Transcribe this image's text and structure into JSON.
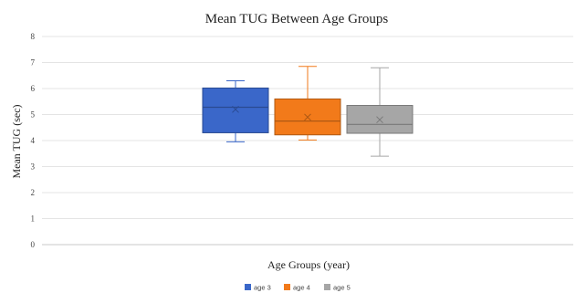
{
  "chart_data": {
    "type": "box",
    "title": "Mean TUG Between Age Groups",
    "xlabel": "Age Groups (year)",
    "ylabel": "Mean TUG (sec)",
    "ylim": [
      0,
      8
    ],
    "yticks": [
      0,
      1,
      2,
      3,
      4,
      5,
      6,
      7,
      8
    ],
    "grid": true,
    "legend_position": "bottom",
    "series": [
      {
        "name": "age  3",
        "color": "#3a67c9",
        "min": 3.95,
        "q1": 4.3,
        "median": 5.28,
        "q3": 6.02,
        "max": 6.3,
        "mean": 5.2
      },
      {
        "name": "age 4",
        "color": "#f27a1a",
        "min": 4.02,
        "q1": 4.22,
        "median": 4.75,
        "q3": 5.6,
        "max": 6.85,
        "mean": 4.9
      },
      {
        "name": "age 5",
        "color": "#a6a6a6",
        "min": 3.4,
        "q1": 4.28,
        "median": 4.62,
        "q3": 5.35,
        "max": 6.8,
        "mean": 4.8
      }
    ]
  }
}
